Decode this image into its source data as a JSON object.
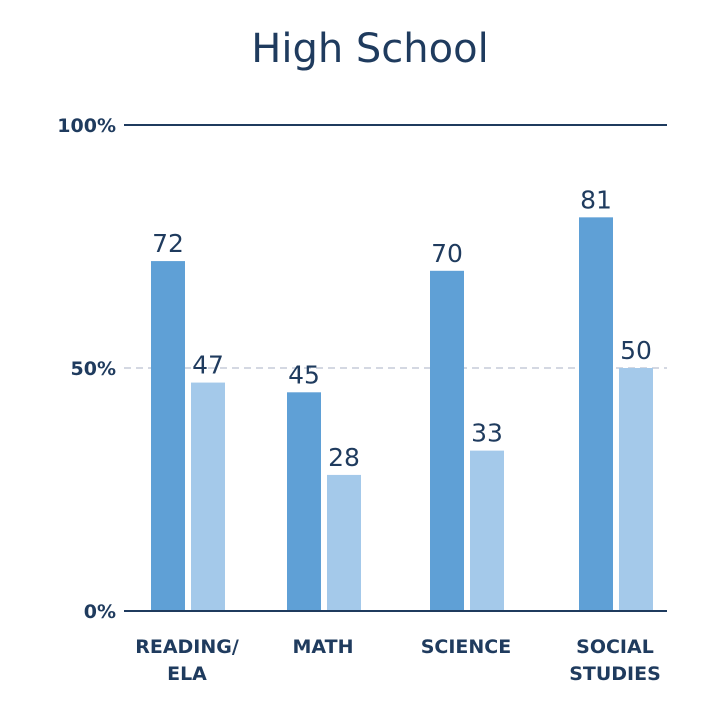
{
  "chart_data": {
    "type": "bar",
    "title": "High School",
    "categories": [
      [
        "READING/",
        "ELA"
      ],
      [
        "MATH"
      ],
      [
        "SCIENCE"
      ],
      [
        "SOCIAL",
        "STUDIES"
      ]
    ],
    "series": [
      {
        "values": [
          72,
          45,
          70,
          81
        ],
        "color": "#5fa0d6"
      },
      {
        "values": [
          47,
          28,
          33,
          50
        ],
        "color": "#a4c9ea"
      }
    ],
    "ylim": [
      0,
      100
    ],
    "yticks": [
      {
        "value": 0,
        "label": "0%"
      },
      {
        "value": 50,
        "label": "50%"
      },
      {
        "value": 100,
        "label": "100%"
      }
    ],
    "axis_color": "#1f3b5e",
    "midline_color": "#c5cbd9",
    "legend": "none",
    "grid": false
  }
}
